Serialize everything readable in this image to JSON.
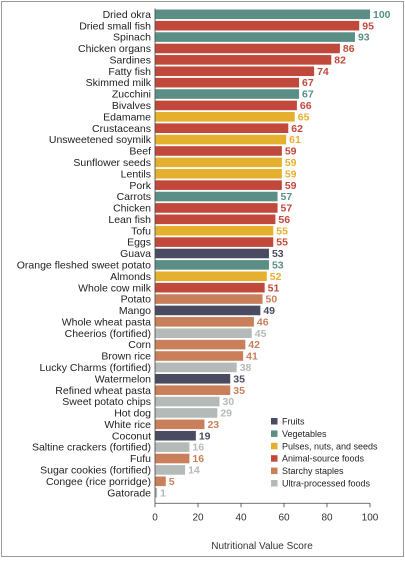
{
  "chart_data": {
    "type": "bar",
    "orientation": "horizontal",
    "xlabel": "Nutritional Value Score",
    "xlim": [
      0,
      100
    ],
    "xticks": [
      "0",
      "20",
      "40",
      "60",
      "80",
      "100"
    ],
    "grid": false,
    "legend_position": "bottom-right",
    "legend": [
      {
        "name": "Fruits",
        "color": "#4a4a60"
      },
      {
        "name": "Vegetables",
        "color": "#5b8f86"
      },
      {
        "name": "Pulses, nuts, and seeds",
        "color": "#e5b02e"
      },
      {
        "name": "Animal-source foods",
        "color": "#c1493b"
      },
      {
        "name": "Starchy staples",
        "color": "#c9805a"
      },
      {
        "name": "Ultra-processed foods",
        "color": "#b4bab8"
      }
    ],
    "items": [
      {
        "label": "Dried okra",
        "value": 100,
        "group": "Vegetables"
      },
      {
        "label": "Dried small fish",
        "value": 95,
        "group": "Animal-source foods"
      },
      {
        "label": "Spinach",
        "value": 93,
        "group": "Vegetables"
      },
      {
        "label": "Chicken organs",
        "value": 86,
        "group": "Animal-source foods"
      },
      {
        "label": "Sardines",
        "value": 82,
        "group": "Animal-source foods"
      },
      {
        "label": "Fatty fish",
        "value": 74,
        "group": "Animal-source foods"
      },
      {
        "label": "Skimmed milk",
        "value": 67,
        "group": "Animal-source foods"
      },
      {
        "label": "Zucchini",
        "value": 67,
        "group": "Vegetables"
      },
      {
        "label": "Bivalves",
        "value": 66,
        "group": "Animal-source foods"
      },
      {
        "label": "Edamame",
        "value": 65,
        "group": "Pulses, nuts, and seeds"
      },
      {
        "label": "Crustaceans",
        "value": 62,
        "group": "Animal-source foods"
      },
      {
        "label": "Unsweetened soymilk",
        "value": 61,
        "group": "Pulses, nuts, and seeds"
      },
      {
        "label": "Beef",
        "value": 59,
        "group": "Animal-source foods"
      },
      {
        "label": "Sunflower seeds",
        "value": 59,
        "group": "Pulses, nuts, and seeds"
      },
      {
        "label": "Lentils",
        "value": 59,
        "group": "Pulses, nuts, and seeds"
      },
      {
        "label": "Pork",
        "value": 59,
        "group": "Animal-source foods"
      },
      {
        "label": "Carrots",
        "value": 57,
        "group": "Vegetables"
      },
      {
        "label": "Chicken",
        "value": 57,
        "group": "Animal-source foods"
      },
      {
        "label": "Lean fish",
        "value": 56,
        "group": "Animal-source foods"
      },
      {
        "label": "Tofu",
        "value": 55,
        "group": "Pulses, nuts, and seeds"
      },
      {
        "label": "Eggs",
        "value": 55,
        "group": "Animal-source foods"
      },
      {
        "label": "Guava",
        "value": 53,
        "group": "Fruits"
      },
      {
        "label": "Orange fleshed sweet potato",
        "value": 53,
        "group": "Vegetables"
      },
      {
        "label": "Almonds",
        "value": 52,
        "group": "Pulses, nuts, and seeds"
      },
      {
        "label": "Whole cow milk",
        "value": 51,
        "group": "Animal-source foods"
      },
      {
        "label": "Potato",
        "value": 50,
        "group": "Starchy staples"
      },
      {
        "label": "Mango",
        "value": 49,
        "group": "Fruits"
      },
      {
        "label": "Whole wheat pasta",
        "value": 46,
        "group": "Starchy staples"
      },
      {
        "label": "Cheerios (fortified)",
        "value": 45,
        "group": "Ultra-processed foods"
      },
      {
        "label": "Corn",
        "value": 42,
        "group": "Starchy staples"
      },
      {
        "label": "Brown rice",
        "value": 41,
        "group": "Starchy staples"
      },
      {
        "label": "Lucky Charms (fortified)",
        "value": 38,
        "group": "Ultra-processed foods"
      },
      {
        "label": "Watermelon",
        "value": 35,
        "group": "Fruits"
      },
      {
        "label": "Refined wheat pasta",
        "value": 35,
        "group": "Starchy staples"
      },
      {
        "label": "Sweet potato chips",
        "value": 30,
        "group": "Ultra-processed foods"
      },
      {
        "label": "Hot dog",
        "value": 29,
        "group": "Ultra-processed foods"
      },
      {
        "label": "White rice",
        "value": 23,
        "group": "Starchy staples"
      },
      {
        "label": "Coconut",
        "value": 19,
        "group": "Fruits"
      },
      {
        "label": "Saltine crackers (fortified)",
        "value": 16,
        "group": "Ultra-processed foods"
      },
      {
        "label": "Fufu",
        "value": 16,
        "group": "Starchy staples"
      },
      {
        "label": "Sugar cookies (fortified)",
        "value": 14,
        "group": "Ultra-processed foods"
      },
      {
        "label": "Congee (rice porridge)",
        "value": 5,
        "group": "Starchy staples"
      },
      {
        "label": "Gatorade",
        "value": 1,
        "group": "Ultra-processed foods"
      }
    ]
  }
}
